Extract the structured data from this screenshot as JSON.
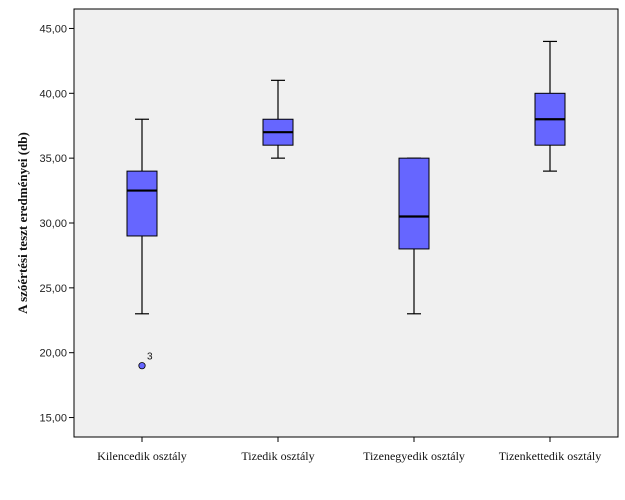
{
  "chart_data": {
    "type": "boxplot",
    "ylabel": "A szóértési teszt eredményei (db)",
    "xlabel": "",
    "ylim": [
      13.5,
      46.5
    ],
    "yticks": [
      "15,00",
      "20,00",
      "25,00",
      "30,00",
      "35,00",
      "40,00",
      "45,00"
    ],
    "ytick_values": [
      15,
      20,
      25,
      30,
      35,
      40,
      45
    ],
    "grid": false,
    "colors": {
      "box": "#6666ff",
      "plot_bg": "#f0f0f0",
      "line": "#000000"
    },
    "categories": [
      "Kilencedik osztály",
      "Tizedik osztály",
      "Tizenegyedik osztály",
      "Tizenkettedik osztály"
    ],
    "boxes": [
      {
        "min": 23,
        "q1": 29,
        "median": 32.5,
        "q3": 34,
        "max": 38,
        "outliers": [
          {
            "value": 19,
            "label": "3"
          }
        ]
      },
      {
        "min": 35,
        "q1": 36,
        "median": 37,
        "q3": 38,
        "max": 41,
        "outliers": []
      },
      {
        "min": 23,
        "q1": 28,
        "median": 30.5,
        "q3": 35,
        "max": 35,
        "outliers": []
      },
      {
        "min": 34,
        "q1": 36,
        "median": 38,
        "q3": 40,
        "max": 44,
        "outliers": []
      }
    ]
  }
}
